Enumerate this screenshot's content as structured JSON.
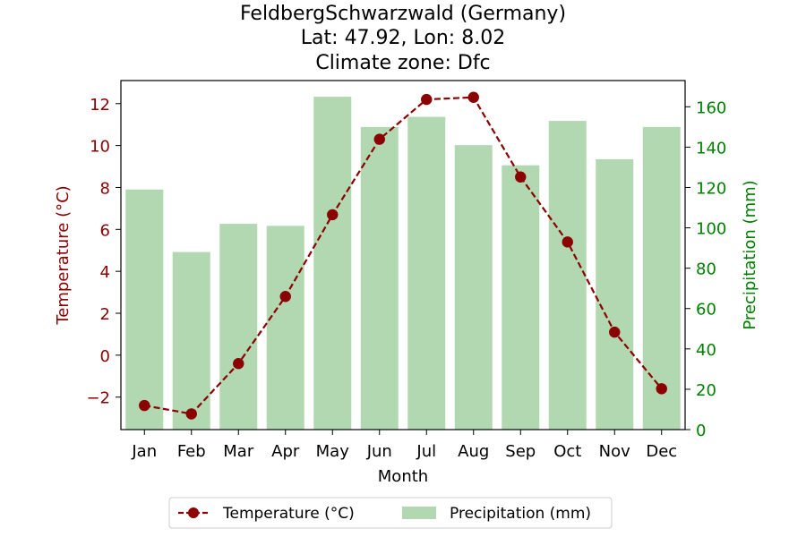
{
  "chart_data": {
    "type": "bar+line",
    "title_lines": [
      "FeldbergSchwarzwald (Germany)",
      "Lat: 47.92, Lon: 8.02",
      "Climate zone: Dfc"
    ],
    "xlabel": "Month",
    "ylabel_left": "Temperature (°C)",
    "ylabel_right": "Precipitation (mm)",
    "categories": [
      "Jan",
      "Feb",
      "Mar",
      "Apr",
      "May",
      "Jun",
      "Jul",
      "Aug",
      "Sep",
      "Oct",
      "Nov",
      "Dec"
    ],
    "temperature": {
      "name": "Temperature (°C)",
      "values": [
        -2.4,
        -2.8,
        -0.4,
        2.8,
        6.7,
        10.3,
        12.2,
        12.3,
        8.5,
        5.4,
        1.1,
        -1.6
      ],
      "ylim": [
        -3.55,
        13.1
      ],
      "ticks": [
        -2,
        0,
        2,
        4,
        6,
        8,
        10,
        12
      ],
      "tick_labels": [
        "−2",
        "0",
        "2",
        "4",
        "6",
        "8",
        "10",
        "12"
      ],
      "color": "#8b0000"
    },
    "precipitation": {
      "name": "Precipitation (mm)",
      "values": [
        119,
        88,
        102,
        101,
        165,
        150,
        155,
        141,
        131,
        153,
        134,
        150
      ],
      "ylim": [
        0,
        173
      ],
      "ticks": [
        0,
        20,
        40,
        60,
        80,
        100,
        120,
        140,
        160
      ],
      "tick_labels": [
        "0",
        "20",
        "40",
        "60",
        "80",
        "100",
        "120",
        "140",
        "160"
      ],
      "color": "#b2d8b2",
      "axis_color": "#008000"
    },
    "legend_position": "bottom-center",
    "grid": false
  }
}
